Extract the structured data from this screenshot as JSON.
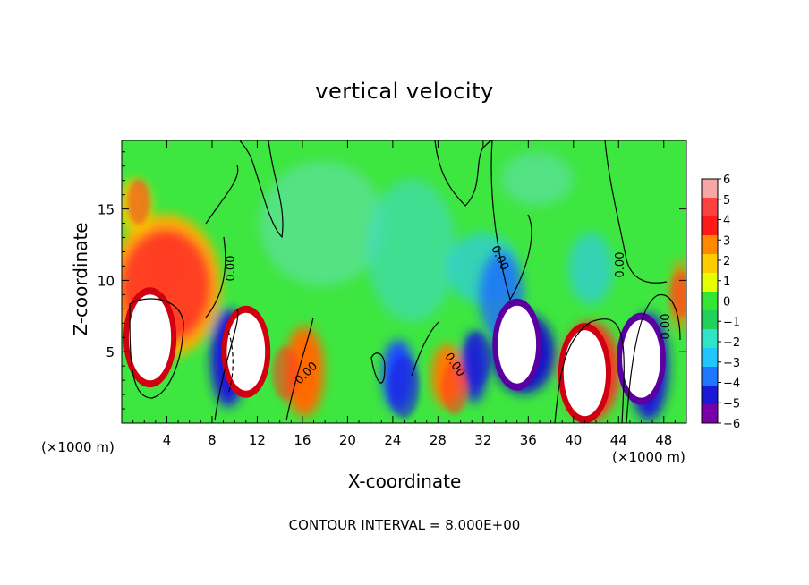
{
  "chart_data": {
    "type": "heatmap",
    "title": "vertical velocity",
    "xlabel": "X-coordinate",
    "ylabel": "Z-coordinate",
    "x_unit_label": "(×1000 m)",
    "x_ticks": [
      4,
      8,
      12,
      16,
      20,
      24,
      28,
      32,
      36,
      40,
      44,
      48
    ],
    "y_ticks": [
      5,
      10,
      15
    ],
    "xlim": [
      0,
      50
    ],
    "ylim": [
      0,
      19.8
    ],
    "colorbar": {
      "ticks": [
        6,
        5,
        4,
        3,
        2,
        1,
        0,
        -1,
        -2,
        -3,
        -4,
        -5,
        -6
      ],
      "range": [
        -6,
        6
      ],
      "colors": [
        "#f7a6a6",
        "#ff4040",
        "#ff1a1a",
        "#ff8800",
        "#ffcc00",
        "#e6ff00",
        "#33e633",
        "#22d15a",
        "#2ee6c6",
        "#22c6ff",
        "#1e78ff",
        "#1a1ad6",
        "#7700aa"
      ]
    },
    "contour_labels": [
      "0.00"
    ],
    "contour_interval_text": "CONTOUR INTERVAL = 8.000E+00",
    "cells": [
      {
        "x": 2.5,
        "z": 6.0,
        "w": 8.0
      },
      {
        "x": 4.0,
        "z": 11.0,
        "w": 4.0
      },
      {
        "x": 1.5,
        "z": 15.5,
        "w": 3.0
      },
      {
        "x": 10.0,
        "z": 4.5,
        "w": -5.0
      },
      {
        "x": 11.0,
        "z": 5.0,
        "w": 7.0
      },
      {
        "x": 14.5,
        "z": 3.5,
        "w": 4.0
      },
      {
        "x": 25.0,
        "z": 2.5,
        "w": -5.0
      },
      {
        "x": 29.5,
        "z": 2.5,
        "w": 4.0
      },
      {
        "x": 31.5,
        "z": 4.5,
        "w": -4.0
      },
      {
        "x": 35.0,
        "z": 5.5,
        "w": -7.0
      },
      {
        "x": 41.0,
        "z": 3.5,
        "w": 8.0
      },
      {
        "x": 46.0,
        "z": 4.5,
        "w": -7.0
      },
      {
        "x": 49.5,
        "z": 9.0,
        "w": 3.0
      }
    ]
  }
}
